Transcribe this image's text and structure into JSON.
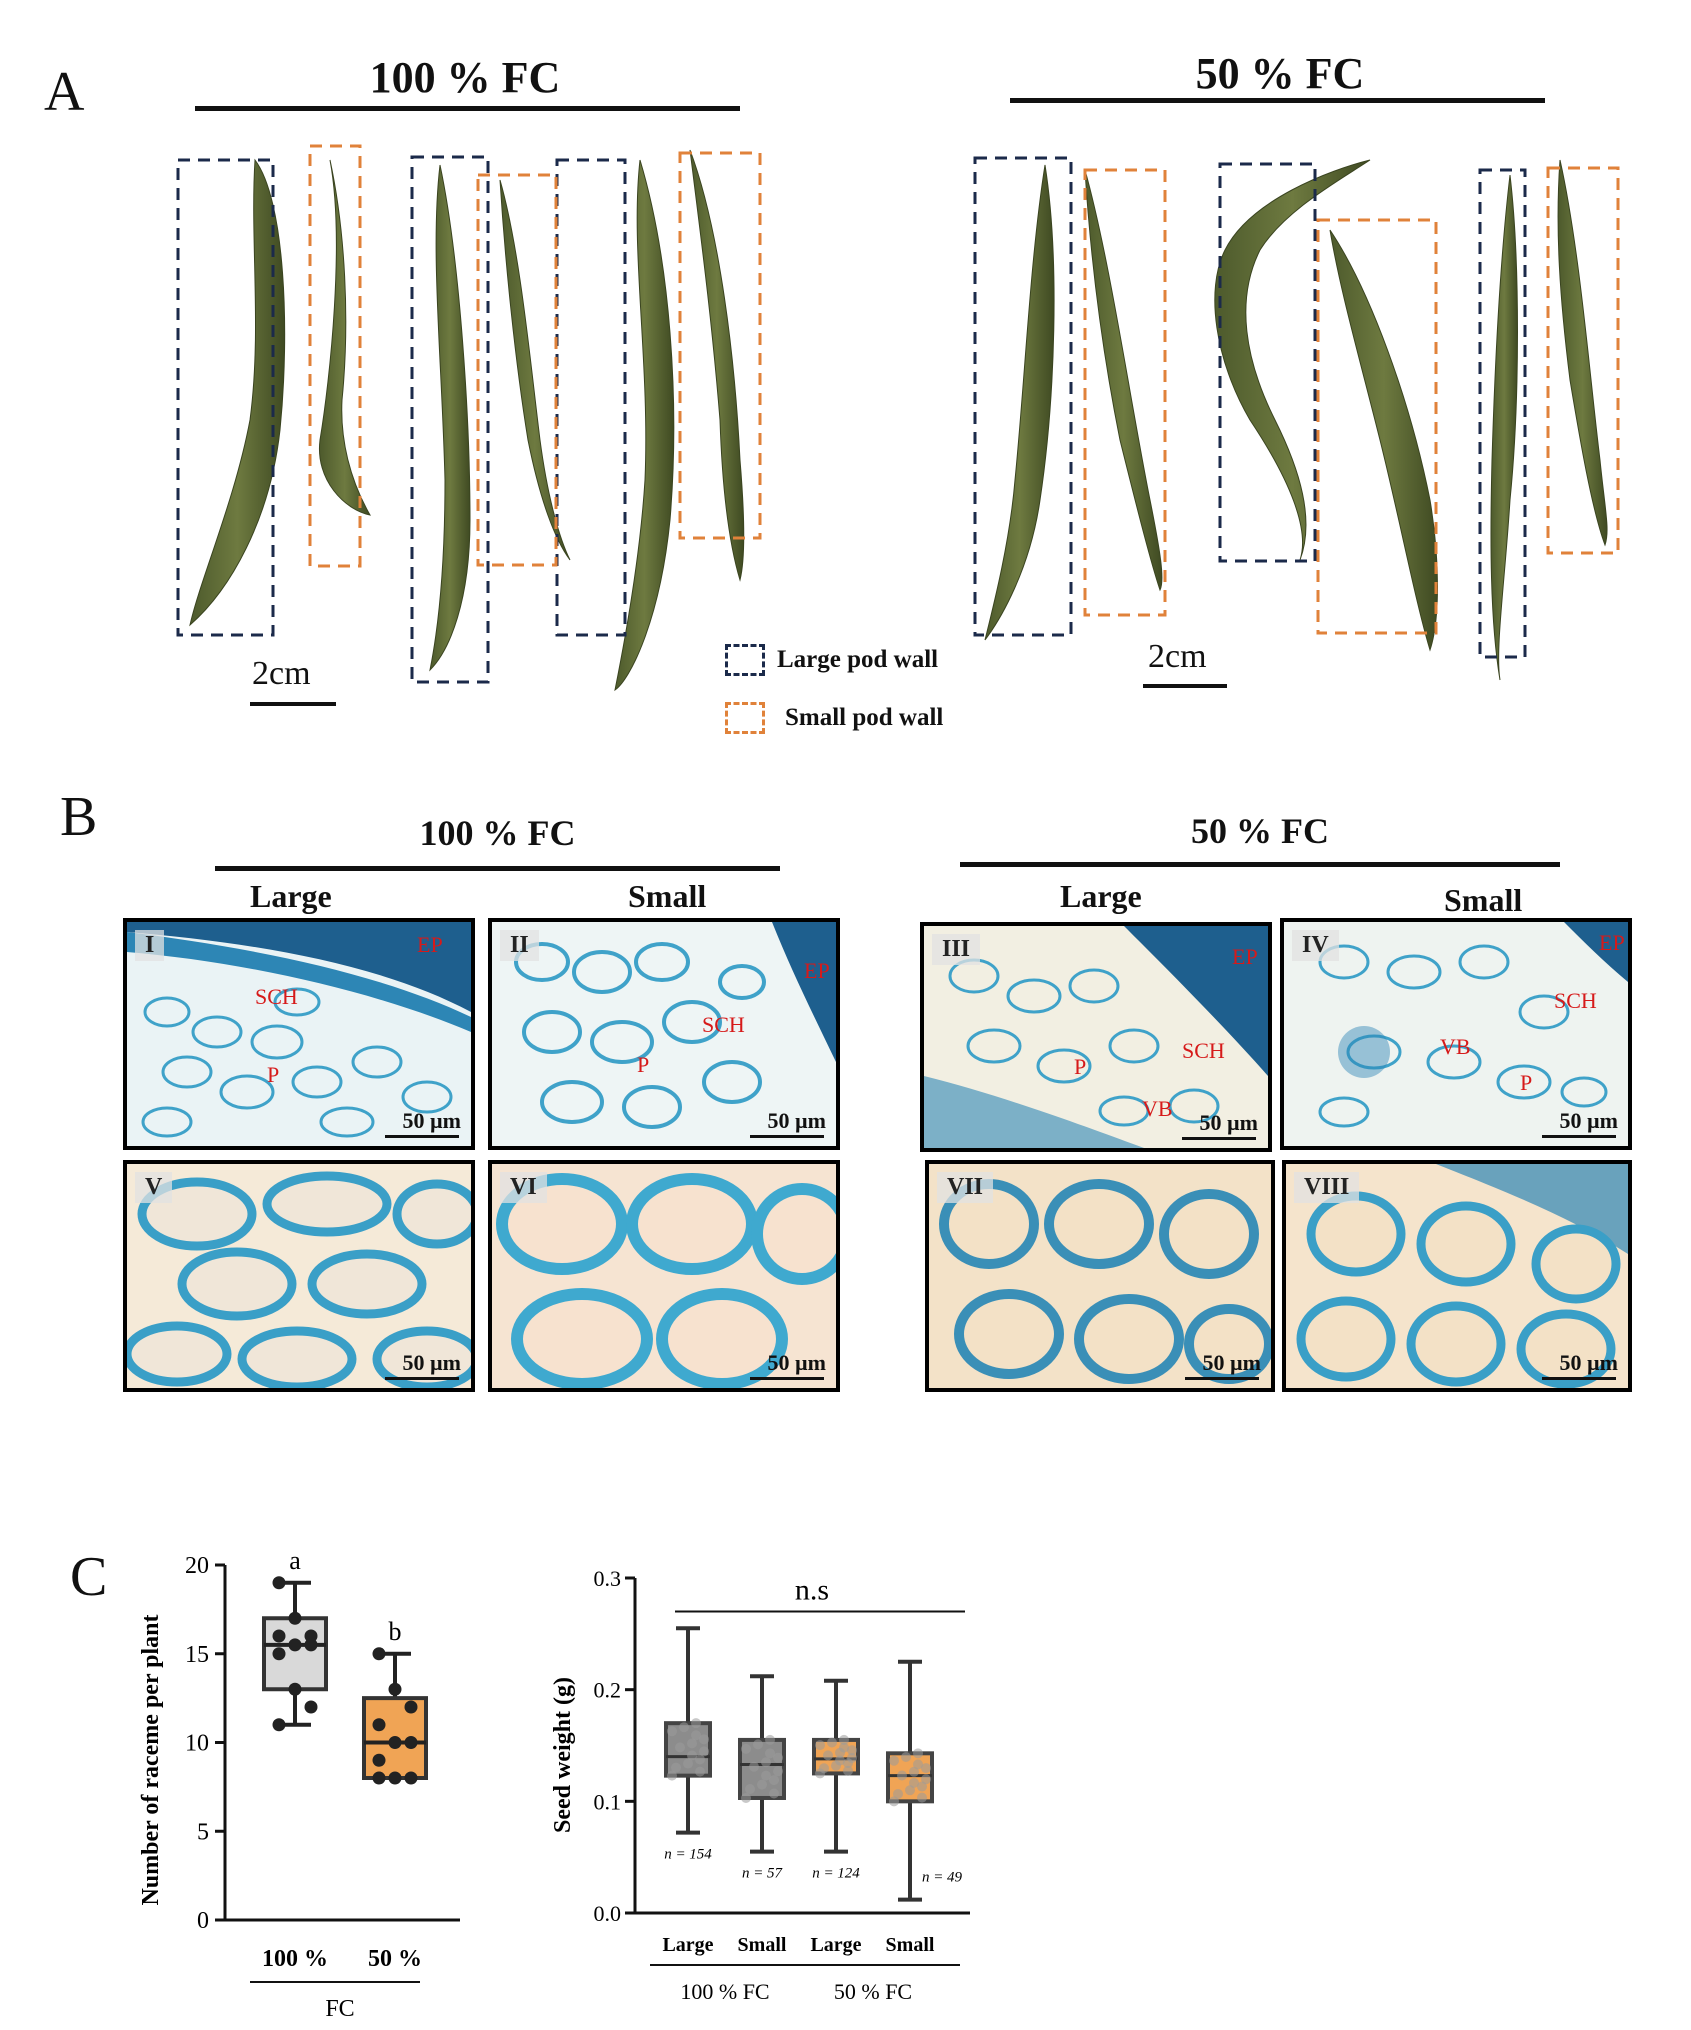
{
  "panelA": {
    "label": "A",
    "left_title": "100 % FC",
    "right_title": "50 % FC",
    "scale_left": "2cm",
    "scale_right": "2cm",
    "legend": [
      {
        "text": "Large pod wall",
        "color": "#1b2a4a"
      },
      {
        "text": "Small pod wall",
        "color": "#e0823a"
      }
    ]
  },
  "panelB": {
    "label": "B",
    "left_title": "100 % FC",
    "right_title": "50 % FC",
    "col_headers": [
      "Large",
      "Small",
      "Large",
      "Small"
    ],
    "scale": "50 µm",
    "panels": [
      {
        "roman": "I",
        "annotations": [
          "EP",
          "SCH",
          "P"
        ]
      },
      {
        "roman": "II",
        "annotations": [
          "EP",
          "SCH",
          "P"
        ]
      },
      {
        "roman": "III",
        "annotations": [
          "EP",
          "SCH",
          "P",
          "VB"
        ]
      },
      {
        "roman": "IV",
        "annotations": [
          "EP",
          "SCH",
          "VB",
          "P"
        ]
      },
      {
        "roman": "V",
        "annotations": []
      },
      {
        "roman": "VI",
        "annotations": []
      },
      {
        "roman": "VII",
        "annotations": []
      },
      {
        "roman": "VIII",
        "annotations": []
      }
    ]
  },
  "panelC": {
    "label": "C",
    "chart_data": [
      {
        "type": "box",
        "ylabel": "Number of raceme  per plant",
        "ylim": [
          0,
          20
        ],
        "yticks": [
          0,
          5,
          10,
          15,
          20
        ],
        "categories": [
          "100 %",
          "50 %"
        ],
        "group_label": "FC",
        "letters": [
          "a",
          "b"
        ],
        "colors": [
          "#d9d9d9",
          "#f0a455"
        ],
        "boxes": [
          {
            "min": 11,
            "q1": 13,
            "median": 15.5,
            "q3": 17,
            "max": 19,
            "points": [
              19,
              17,
              16,
              16,
              15.5,
              15.5,
              15,
              13,
              12,
              11
            ]
          },
          {
            "min": 8,
            "q1": 8,
            "median": 10,
            "q3": 12.5,
            "max": 15,
            "points": [
              15,
              13,
              12,
              11,
              10,
              10,
              9,
              8,
              8,
              8
            ]
          }
        ]
      },
      {
        "type": "box",
        "ylabel": "Seed weight (g)",
        "ylim": [
          0.0,
          0.3
        ],
        "yticks": [
          0.0,
          0.1,
          0.2,
          0.3
        ],
        "yticklabels": [
          "0.0",
          "0.1",
          "0.2",
          "0.3"
        ],
        "categories": [
          "Large",
          "Small",
          "Large",
          "Small"
        ],
        "groups": [
          {
            "label": "100 % FC",
            "span": [
              0,
              1
            ]
          },
          {
            "label": "50 % FC",
            "span": [
              2,
              3
            ]
          }
        ],
        "significance": "n.s",
        "n_labels": [
          "n = 154",
          "n = 57",
          "n = 124",
          "n = 49"
        ],
        "colors": [
          "#8c8c8c",
          "#8c8c8c",
          "#f0a455",
          "#f0a455"
        ],
        "boxes": [
          {
            "min": 0.072,
            "q1": 0.123,
            "median": 0.14,
            "q3": 0.17,
            "max": 0.255
          },
          {
            "min": 0.055,
            "q1": 0.103,
            "median": 0.133,
            "q3": 0.155,
            "max": 0.212
          },
          {
            "min": 0.055,
            "q1": 0.125,
            "median": 0.138,
            "q3": 0.155,
            "max": 0.208
          },
          {
            "min": 0.012,
            "q1": 0.1,
            "median": 0.123,
            "q3": 0.143,
            "max": 0.225
          }
        ]
      }
    ]
  }
}
